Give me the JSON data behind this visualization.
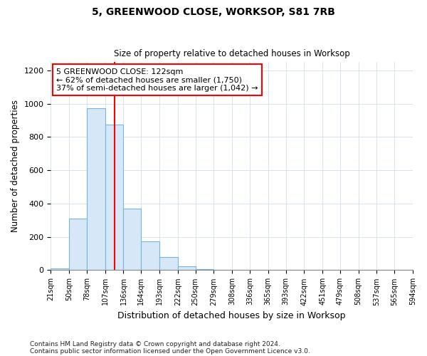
{
  "title1": "5, GREENWOOD CLOSE, WORKSOP, S81 7RB",
  "title2": "Size of property relative to detached houses in Worksop",
  "xlabel": "Distribution of detached houses by size in Worksop",
  "ylabel": "Number of detached properties",
  "footnote1": "Contains HM Land Registry data © Crown copyright and database right 2024.",
  "footnote2": "Contains public sector information licensed under the Open Government Licence v3.0.",
  "annotation_line1": "5 GREENWOOD CLOSE: 122sqm",
  "annotation_line2": "← 62% of detached houses are smaller (1,750)",
  "annotation_line3": "37% of semi-detached houses are larger (1,042) →",
  "bar_edges": [
    21,
    50,
    78,
    107,
    136,
    164,
    193,
    222,
    250,
    279,
    308,
    336,
    365,
    393,
    422,
    451,
    479,
    508,
    537,
    565,
    594
  ],
  "bar_heights": [
    10,
    310,
    975,
    875,
    370,
    175,
    80,
    25,
    5,
    0,
    0,
    0,
    0,
    0,
    0,
    0,
    0,
    0,
    0,
    0
  ],
  "bar_color": "#d6e8f7",
  "bar_edge_color": "#7ab3d9",
  "red_line_x": 122,
  "ylim": [
    0,
    1250
  ],
  "yticks": [
    0,
    200,
    400,
    600,
    800,
    1000,
    1200
  ],
  "background_color": "#ffffff",
  "grid_color": "#c8d8e8"
}
